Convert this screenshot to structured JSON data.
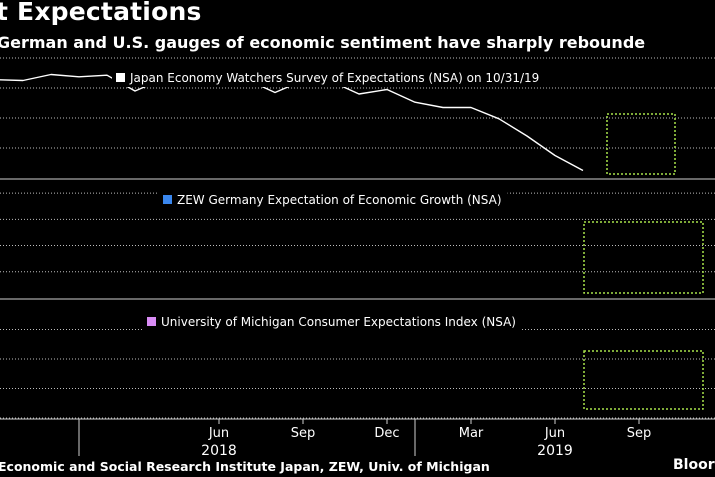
{
  "header": {
    "title": "t Expectations",
    "subtitle": "German and U.S. gauges of economic sentiment have sharply rebounde"
  },
  "footer": {
    "source": "Economic and Social Research Institute Japan, ZEW, Univ. of Michigan",
    "brand": "Bloor"
  },
  "chart_data": {
    "type": "line",
    "x": [
      "2017-10",
      "2017-11",
      "2017-12",
      "2018-01",
      "2018-02",
      "2018-03",
      "2018-04",
      "2018-05",
      "2018-06",
      "2018-07",
      "2018-08",
      "2018-09",
      "2018-10",
      "2018-11",
      "2018-12",
      "2019-01",
      "2019-02",
      "2019-03",
      "2019-04",
      "2019-05",
      "2019-06",
      "2019-07",
      "2019-08",
      "2019-09",
      "2019-10",
      "2019-11"
    ],
    "x_tick_labels": [
      {
        "x": "2018-06",
        "label": "Jun"
      },
      {
        "x": "2018-09",
        "label": "Sep"
      },
      {
        "x": "2018-12",
        "label": "Dec"
      },
      {
        "x": "2019-03",
        "label": "Mar"
      },
      {
        "x": "2019-06",
        "label": "Jun"
      },
      {
        "x": "2019-09",
        "label": "Sep"
      }
    ],
    "year_labels": [
      {
        "x": "2018-06",
        "label": "2018"
      },
      {
        "x": "2019-06",
        "label": "2019"
      }
    ],
    "year_dividers": [
      "2018-01",
      "2019-01"
    ],
    "grid": true,
    "series": [
      {
        "name": "Japan Economy Watchers Survey of Expectations (NSA) on 10/31/19",
        "color": "#ffffff",
        "values": [
          53.1,
          53.0,
          53.8,
          53.5,
          53.7,
          51.6,
          53.2,
          53.5,
          52.9,
          53.1,
          51.4,
          53.0,
          52.9,
          51.2,
          51.8,
          50.1,
          49.4,
          49.4,
          47.9,
          45.6,
          43.0,
          41.0,
          null,
          null,
          null,
          null
        ]
      },
      {
        "name": "ZEW Germany Expectation of Economic Growth (NSA)",
        "color": "#3a87ee",
        "values": [
          null,
          null,
          null,
          null,
          null,
          null,
          null,
          null,
          null,
          null,
          null,
          null,
          null,
          null,
          null,
          null,
          null,
          null,
          null,
          null,
          null,
          null,
          null,
          null,
          null,
          null
        ]
      },
      {
        "name": "University of Michigan Consumer Expectations Index (NSA)",
        "color": "#d98cf5",
        "values": [
          null,
          null,
          null,
          null,
          null,
          null,
          null,
          null,
          null,
          null,
          null,
          null,
          null,
          null,
          null,
          null,
          null,
          null,
          null,
          null,
          null,
          null,
          null,
          null,
          null,
          null
        ]
      }
    ]
  }
}
